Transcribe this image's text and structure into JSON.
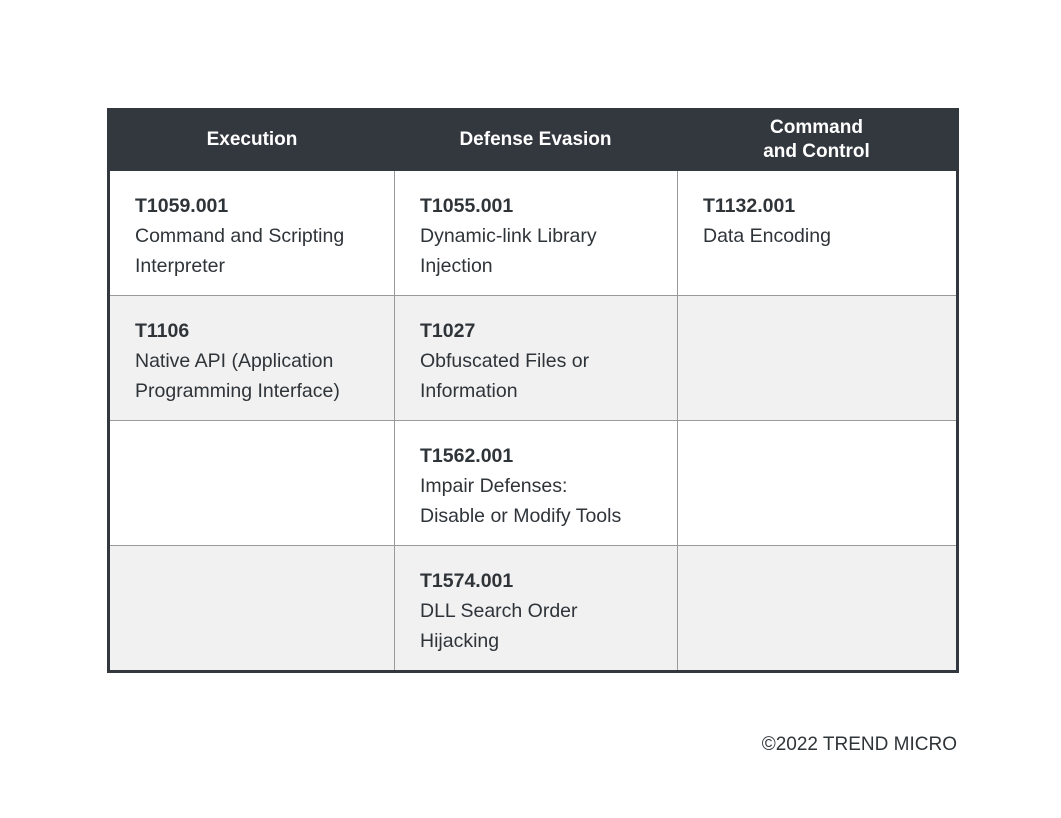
{
  "table": {
    "headers": [
      "Execution",
      "Defense Evasion",
      "Command\nand Control"
    ],
    "rows": [
      [
        {
          "id": "T1059.001",
          "name": "Command and Scripting\nInterpreter"
        },
        {
          "id": "T1055.001",
          "name": "Dynamic-link Library\nInjection"
        },
        {
          "id": "T1132.001",
          "name": "Data Encoding"
        }
      ],
      [
        {
          "id": "T1106",
          "name": "Native API (Application\nProgramming Interface)"
        },
        {
          "id": "T1027",
          "name": "Obfuscated Files or\nInformation"
        },
        {
          "id": "",
          "name": ""
        }
      ],
      [
        {
          "id": "",
          "name": ""
        },
        {
          "id": "T1562.001",
          "name": "Impair Defenses:\nDisable or Modify Tools"
        },
        {
          "id": "",
          "name": ""
        }
      ],
      [
        {
          "id": "",
          "name": ""
        },
        {
          "id": "T1574.001",
          "name": "DLL Search Order\nHijacking"
        },
        {
          "id": "",
          "name": ""
        }
      ]
    ]
  },
  "footer": {
    "copyright": "©2022 TREND MICRO"
  },
  "colors": {
    "header_bg": "#33383e",
    "alt_row_bg": "#f1f1f1",
    "text": "#2f3439"
  }
}
